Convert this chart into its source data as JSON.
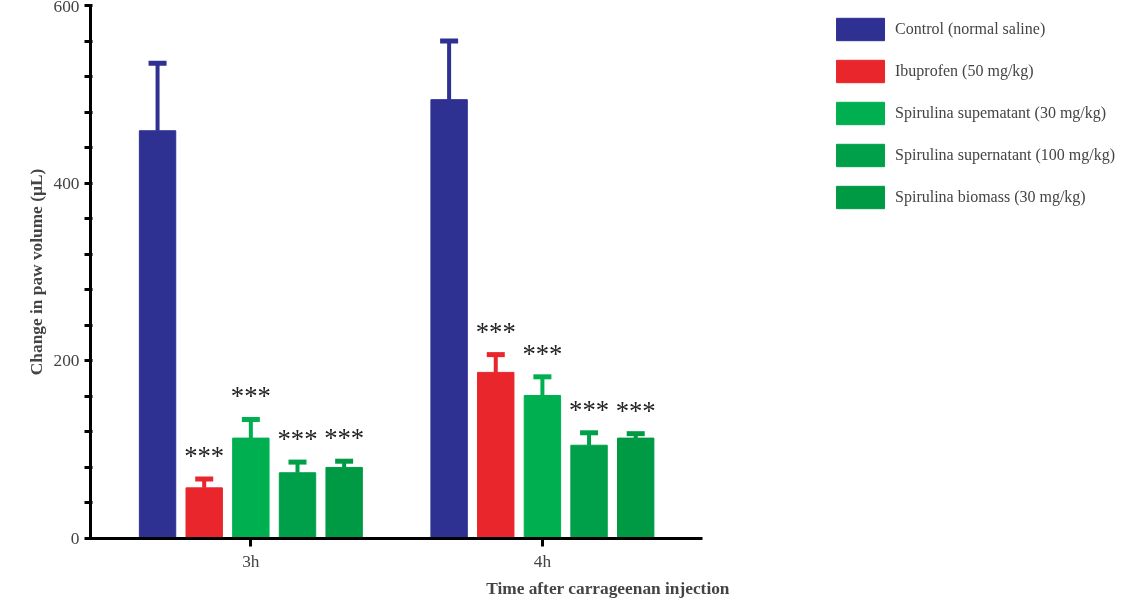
{
  "chart_data": {
    "type": "bar",
    "xlabel": "Time after carrageenan injection",
    "ylabel": "Change in paw volume (µL)",
    "categories": [
      "3h",
      "4h"
    ],
    "series": [
      {
        "name": "Control (normal saline)",
        "color": "#2e3192",
        "values": [
          459,
          494
        ],
        "errors": [
          76,
          66
        ]
      },
      {
        "name": "Ibuprofen (50 mg/kg)",
        "color": "#e8262b",
        "values": [
          57,
          187
        ],
        "errors": [
          10,
          20
        ]
      },
      {
        "name": "Spirulina supematant (30 mg/kg)",
        "color": "#00b050",
        "values": [
          113,
          161
        ],
        "errors": [
          21,
          21
        ]
      },
      {
        "name": "Spirulina supernatant (100 mg/kg)",
        "color": "#00a04a",
        "values": [
          74,
          105
        ],
        "errors": [
          12,
          14
        ]
      },
      {
        "name": "Spirulina biomass (30 mg/kg)",
        "color": "#009944",
        "values": [
          80,
          113
        ],
        "errors": [
          7,
          5
        ]
      }
    ],
    "ylim": [
      0,
      600
    ],
    "yticks": [
      0,
      {
        "value": 40,
        "label": null
      },
      {
        "value": 80,
        "label": null
      },
      {
        "value": 120,
        "label": null
      },
      {
        "value": 160,
        "label": null
      },
      200,
      {
        "value": 240,
        "label": null
      },
      {
        "value": 280,
        "label": null
      },
      {
        "value": 320,
        "label": null
      },
      {
        "value": 360,
        "label": null
      },
      400,
      {
        "value": 440,
        "label": null
      },
      {
        "value": 480,
        "label": null
      },
      {
        "value": 520,
        "label": null
      },
      {
        "value": 560,
        "label": null
      },
      600
    ],
    "annotations": [
      "***",
      "***",
      "***",
      "***",
      "***",
      "***",
      "***",
      "***"
    ],
    "grid": false,
    "legend": "top right"
  }
}
